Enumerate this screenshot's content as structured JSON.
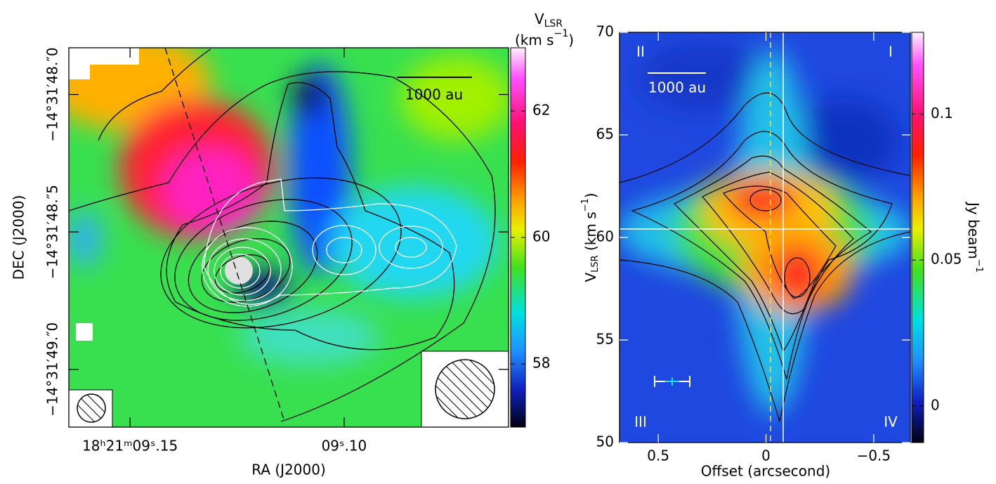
{
  "chart_data": [
    {
      "type": "map",
      "xlabel": "RA (J2000)",
      "ylabel": "DEC (J2000)",
      "xlim": [
        9.1643,
        9.0616
      ],
      "xticks": [
        {
          "value": 9.15,
          "label": "18ʰ21ᵐ09ˢ.15"
        },
        {
          "value": 9.1,
          "label": "09ˢ.10"
        }
      ],
      "ylim": [
        47.83,
        49.21
      ],
      "yticks": [
        {
          "value": 48.0,
          "label": "−14°31′48.″0"
        },
        {
          "value": 48.5,
          "label": "−14°31′48.″5"
        },
        {
          "value": 49.0,
          "label": "−14°31′49.″0"
        }
      ],
      "colorbar": {
        "label": [
          "V",
          "LSR"
        ],
        "unit": [
          "(km s",
          "−1",
          ")"
        ],
        "lim": [
          57,
          63
        ],
        "ticks": [
          58,
          60,
          62
        ]
      },
      "scale_bar": "1000 au"
    },
    {
      "type": "pv",
      "xlabel": "Offset (arcsecond)",
      "ylabel": [
        "V",
        "LSR",
        " (km s",
        "−1",
        ")"
      ],
      "xlim": [
        0.68,
        -0.67
      ],
      "xticks": [
        0.5,
        0,
        {
          "value": -0.5,
          "label": "−0.5"
        }
      ],
      "ylim": [
        50,
        70
      ],
      "yticks": [
        50,
        55,
        60,
        65,
        70
      ],
      "colorbar": {
        "label": [
          "Jy beam",
          "−1"
        ],
        "lim": [
          -0.0125,
          0.128
        ],
        "ticks": [
          0,
          0.05,
          0.1
        ]
      },
      "quadrants": [
        "II",
        "I",
        "III",
        "IV"
      ],
      "scale_bar": "1000 au"
    }
  ]
}
